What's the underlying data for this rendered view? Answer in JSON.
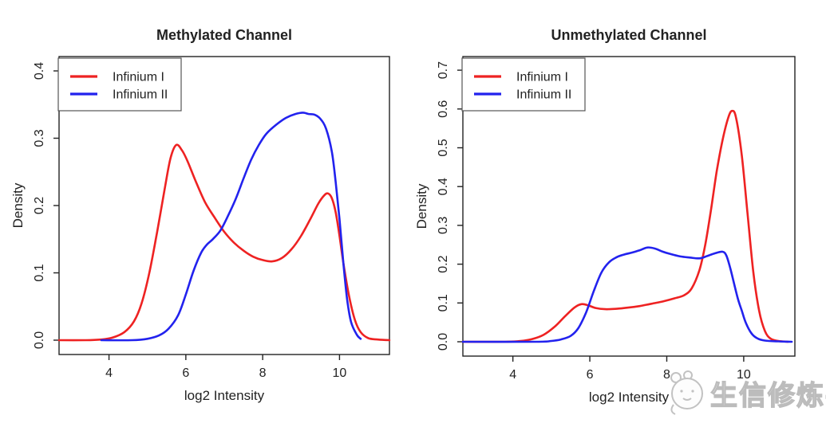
{
  "watermark": {
    "text": "生信修炼手册",
    "logo": "mascot-icon",
    "color": "#c2c2c2"
  },
  "colors": {
    "infinium1": "#ee2222",
    "infinium2": "#2222ee",
    "axis": "#222222"
  },
  "chart_data": [
    {
      "type": "line",
      "title": "Methylated Channel",
      "xlabel": "log2 Intensity",
      "ylabel": "Density",
      "xlim": [
        2.7,
        11.3
      ],
      "ylim": [
        0,
        0.42
      ],
      "xticks": [
        4,
        6,
        8,
        10
      ],
      "xticklabels": [
        "4",
        "6",
        "8",
        "10"
      ],
      "yticks": [
        0,
        0.1,
        0.2,
        0.3,
        0.4
      ],
      "yticklabels": [
        "0.0",
        "0.1",
        "0.2",
        "0.3",
        "0.4"
      ],
      "grid": false,
      "legend_position": "top-left",
      "series": [
        {
          "name": "Infinium I",
          "color": "#ee2222",
          "points": [
            [
              2.7,
              0
            ],
            [
              3.4,
              0
            ],
            [
              3.8,
              0.001
            ],
            [
              4.1,
              0.004
            ],
            [
              4.4,
              0.012
            ],
            [
              4.65,
              0.028
            ],
            [
              4.85,
              0.055
            ],
            [
              5.05,
              0.1
            ],
            [
              5.25,
              0.16
            ],
            [
              5.45,
              0.225
            ],
            [
              5.6,
              0.27
            ],
            [
              5.75,
              0.29
            ],
            [
              5.9,
              0.282
            ],
            [
              6.05,
              0.265
            ],
            [
              6.25,
              0.237
            ],
            [
              6.5,
              0.205
            ],
            [
              6.75,
              0.182
            ],
            [
              7,
              0.161
            ],
            [
              7.25,
              0.145
            ],
            [
              7.5,
              0.133
            ],
            [
              7.75,
              0.124
            ],
            [
              8,
              0.119
            ],
            [
              8.25,
              0.117
            ],
            [
              8.5,
              0.122
            ],
            [
              8.75,
              0.135
            ],
            [
              9,
              0.155
            ],
            [
              9.25,
              0.181
            ],
            [
              9.45,
              0.203
            ],
            [
              9.6,
              0.215
            ],
            [
              9.7,
              0.218
            ],
            [
              9.8,
              0.211
            ],
            [
              9.9,
              0.19
            ],
            [
              10,
              0.155
            ],
            [
              10.1,
              0.115
            ],
            [
              10.25,
              0.065
            ],
            [
              10.4,
              0.03
            ],
            [
              10.55,
              0.012
            ],
            [
              10.75,
              0.003
            ],
            [
              11,
              0.001
            ],
            [
              11.3,
              0
            ]
          ]
        },
        {
          "name": "Infinium II",
          "color": "#2222ee",
          "points": [
            [
              3.8,
              0
            ],
            [
              4.6,
              0
            ],
            [
              5,
              0.002
            ],
            [
              5.3,
              0.007
            ],
            [
              5.55,
              0.017
            ],
            [
              5.8,
              0.037
            ],
            [
              6,
              0.068
            ],
            [
              6.2,
              0.103
            ],
            [
              6.4,
              0.13
            ],
            [
              6.55,
              0.142
            ],
            [
              6.7,
              0.15
            ],
            [
              6.9,
              0.163
            ],
            [
              7.1,
              0.185
            ],
            [
              7.3,
              0.21
            ],
            [
              7.5,
              0.24
            ],
            [
              7.7,
              0.268
            ],
            [
              7.9,
              0.29
            ],
            [
              8.1,
              0.307
            ],
            [
              8.35,
              0.32
            ],
            [
              8.6,
              0.33
            ],
            [
              8.85,
              0.336
            ],
            [
              9.05,
              0.338
            ],
            [
              9.2,
              0.336
            ],
            [
              9.35,
              0.335
            ],
            [
              9.5,
              0.329
            ],
            [
              9.65,
              0.314
            ],
            [
              9.8,
              0.28
            ],
            [
              9.9,
              0.235
            ],
            [
              10,
              0.18
            ],
            [
              10.1,
              0.115
            ],
            [
              10.2,
              0.06
            ],
            [
              10.3,
              0.027
            ],
            [
              10.45,
              0.008
            ],
            [
              10.55,
              0.002
            ]
          ]
        }
      ]
    },
    {
      "type": "line",
      "title": "Unmethylated Channel",
      "xlabel": "log2 Intensity",
      "ylabel": "Density",
      "xlim": [
        2.7,
        11.33
      ],
      "ylim": [
        0,
        0.72
      ],
      "xticks": [
        4,
        6,
        8,
        10
      ],
      "xticklabels": [
        "4",
        "6",
        "8",
        "10"
      ],
      "yticks": [
        0,
        0.1,
        0.2,
        0.3,
        0.4,
        0.5,
        0.6,
        0.7
      ],
      "yticklabels": [
        "0.0",
        "0.1",
        "0.2",
        "0.3",
        "0.4",
        "0.5",
        "0.6",
        "0.7"
      ],
      "grid": false,
      "legend_position": "top-left",
      "series": [
        {
          "name": "Infinium I",
          "color": "#ee2222",
          "points": [
            [
              2.7,
              0
            ],
            [
              3.8,
              0
            ],
            [
              4.2,
              0.002
            ],
            [
              4.5,
              0.007
            ],
            [
              4.8,
              0.018
            ],
            [
              5.1,
              0.04
            ],
            [
              5.35,
              0.065
            ],
            [
              5.6,
              0.088
            ],
            [
              5.78,
              0.097
            ],
            [
              5.95,
              0.094
            ],
            [
              6.15,
              0.087
            ],
            [
              6.4,
              0.084
            ],
            [
              6.7,
              0.085
            ],
            [
              7,
              0.088
            ],
            [
              7.3,
              0.092
            ],
            [
              7.6,
              0.098
            ],
            [
              7.9,
              0.104
            ],
            [
              8.2,
              0.112
            ],
            [
              8.45,
              0.12
            ],
            [
              8.65,
              0.138
            ],
            [
              8.85,
              0.185
            ],
            [
              9,
              0.25
            ],
            [
              9.15,
              0.34
            ],
            [
              9.3,
              0.44
            ],
            [
              9.45,
              0.52
            ],
            [
              9.6,
              0.578
            ],
            [
              9.7,
              0.595
            ],
            [
              9.8,
              0.578
            ],
            [
              9.95,
              0.48
            ],
            [
              10.1,
              0.33
            ],
            [
              10.25,
              0.18
            ],
            [
              10.4,
              0.08
            ],
            [
              10.55,
              0.028
            ],
            [
              10.7,
              0.008
            ],
            [
              10.9,
              0.002
            ],
            [
              11.15,
              0
            ]
          ]
        },
        {
          "name": "Infinium II",
          "color": "#2222ee",
          "points": [
            [
              2.7,
              0
            ],
            [
              4.6,
              0
            ],
            [
              5,
              0.002
            ],
            [
              5.25,
              0.006
            ],
            [
              5.5,
              0.015
            ],
            [
              5.7,
              0.035
            ],
            [
              5.9,
              0.075
            ],
            [
              6.1,
              0.13
            ],
            [
              6.3,
              0.178
            ],
            [
              6.5,
              0.205
            ],
            [
              6.7,
              0.218
            ],
            [
              6.9,
              0.225
            ],
            [
              7.1,
              0.23
            ],
            [
              7.3,
              0.236
            ],
            [
              7.5,
              0.243
            ],
            [
              7.7,
              0.24
            ],
            [
              7.9,
              0.232
            ],
            [
              8.1,
              0.226
            ],
            [
              8.35,
              0.22
            ],
            [
              8.6,
              0.217
            ],
            [
              8.85,
              0.215
            ],
            [
              9.05,
              0.221
            ],
            [
              9.25,
              0.228
            ],
            [
              9.45,
              0.232
            ],
            [
              9.55,
              0.222
            ],
            [
              9.65,
              0.19
            ],
            [
              9.75,
              0.15
            ],
            [
              9.85,
              0.11
            ],
            [
              9.95,
              0.08
            ],
            [
              10.05,
              0.05
            ],
            [
              10.2,
              0.022
            ],
            [
              10.35,
              0.009
            ],
            [
              10.55,
              0.003
            ],
            [
              10.9,
              0.001
            ],
            [
              11.25,
              0
            ]
          ]
        }
      ]
    }
  ]
}
